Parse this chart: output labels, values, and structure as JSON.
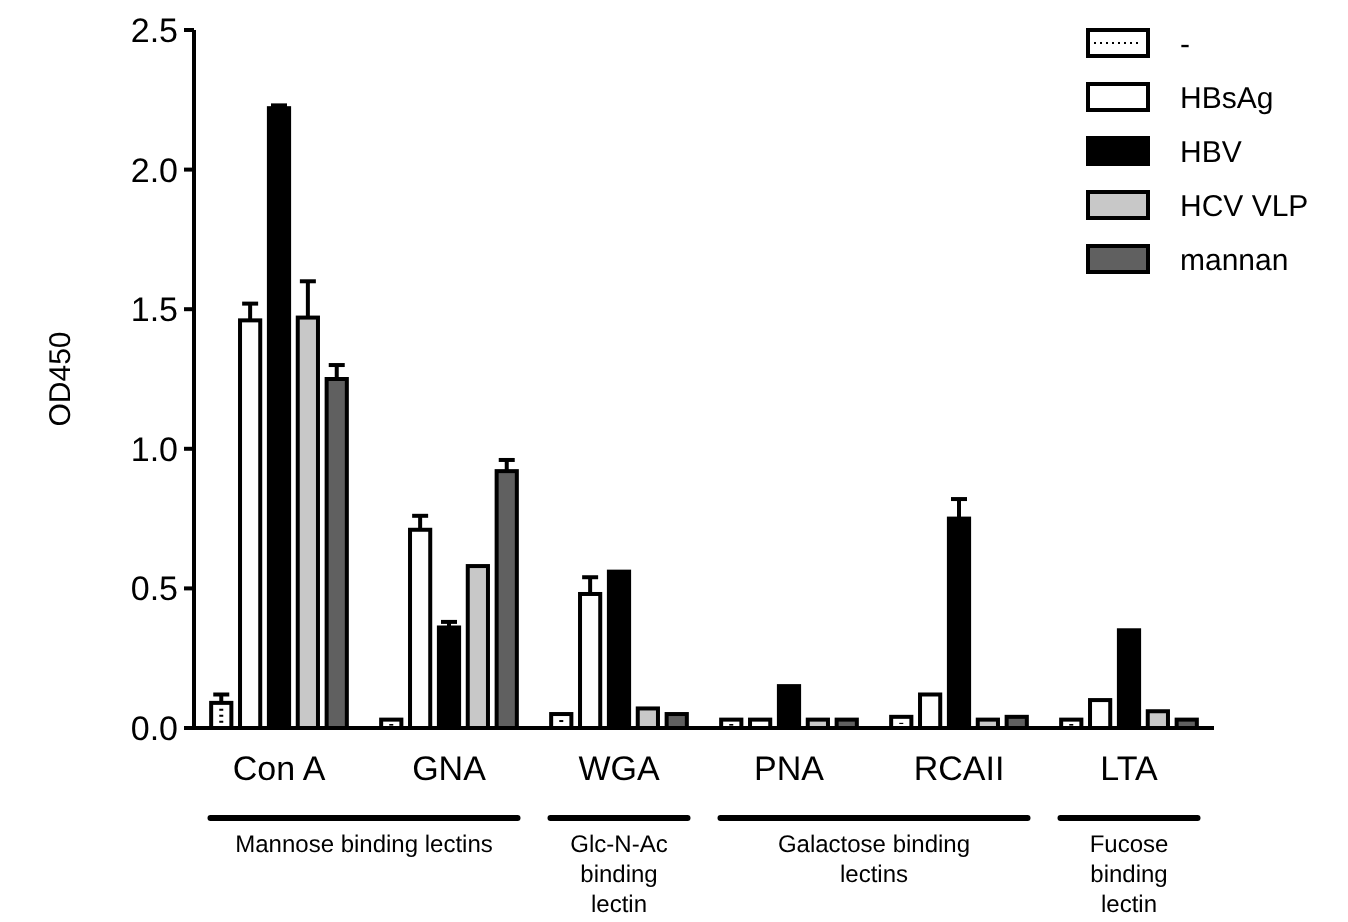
{
  "chart_data": {
    "type": "bar",
    "ylabel": "OD450",
    "categories": [
      "Con A",
      "GNA",
      "WGA",
      "PNA",
      "RCAII",
      "LTA"
    ],
    "series": [
      {
        "name": "-",
        "color": "#ffffff",
        "values": [
          0.09,
          0.03,
          0.05,
          0.03,
          0.04,
          0.03
        ],
        "errors": [
          0.03,
          null,
          null,
          null,
          null,
          null
        ]
      },
      {
        "name": "HBsAg",
        "color": "#ffffff",
        "values": [
          1.46,
          0.71,
          0.48,
          0.03,
          0.12,
          0.1
        ],
        "errors": [
          0.06,
          0.05,
          0.06,
          null,
          null,
          null
        ]
      },
      {
        "name": "HBV",
        "color": "#000000",
        "values": [
          2.22,
          0.36,
          0.56,
          0.15,
          0.75,
          0.35
        ],
        "errors": [
          0.01,
          0.02,
          null,
          null,
          0.07,
          null
        ]
      },
      {
        "name": "HCV VLP",
        "color": "#c8c8c8",
        "values": [
          1.47,
          0.58,
          0.07,
          0.03,
          0.03,
          0.06
        ],
        "errors": [
          0.13,
          null,
          null,
          null,
          null,
          null
        ]
      },
      {
        "name": "mannan",
        "color": "#606060",
        "values": [
          1.25,
          0.92,
          0.05,
          0.03,
          0.04,
          0.03
        ],
        "errors": [
          0.05,
          0.04,
          null,
          null,
          null,
          null
        ]
      }
    ],
    "ylim": [
      0,
      2.5
    ],
    "yticks": [
      {
        "value": 0,
        "label": "0.0"
      },
      {
        "value": 0.5,
        "label": "0.5"
      },
      {
        "value": 1,
        "label": "1.0"
      },
      {
        "value": 1.5,
        "label": "1.5"
      },
      {
        "value": 2,
        "label": "2.0"
      },
      {
        "value": 2.5,
        "label": "2.5"
      }
    ],
    "legend": "top right",
    "grid": false,
    "annotations": [
      "Mannose binding lectins",
      "Glc-N-Ac binding lectin",
      "Galactose binding lectins",
      "Fucose binding lectin"
    ]
  }
}
